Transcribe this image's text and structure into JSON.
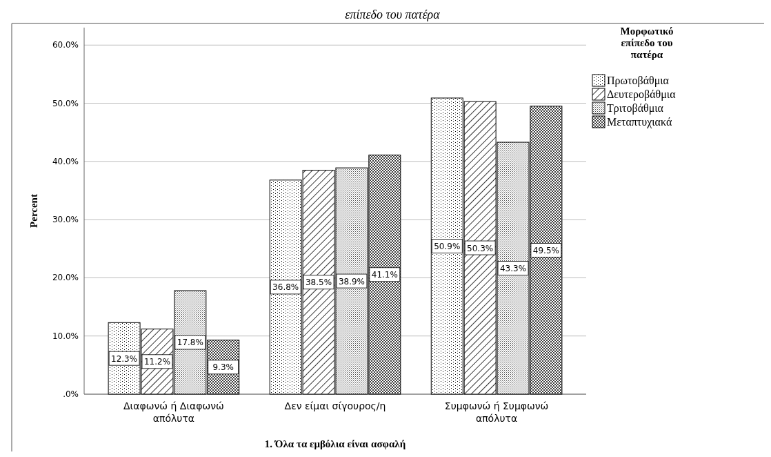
{
  "chart_data": {
    "type": "bar",
    "title": "επίπεδο του πατέρα",
    "xlabel": "1. Όλα τα εμβόλια είναι ασφαλή",
    "ylabel": "Percent",
    "legend_title": "Μορφωτικό επίπεδο του πατέρα",
    "categories": [
      "Διαφωνώ ή Διαφωνώ απόλυτα",
      "Δεν είμαι σίγουρος/η",
      "Συμφωνώ ή Συμφωνώ απόλυτα"
    ],
    "series": [
      {
        "name": "Πρωτοβάθμια",
        "color": "#000000",
        "values": [
          12.3,
          36.8,
          50.9
        ]
      },
      {
        "name": "Δευτεροβάθμια",
        "color": "#000000",
        "values": [
          11.2,
          38.5,
          50.3
        ]
      },
      {
        "name": "Τριτοβάθμια",
        "color": "#000000",
        "values": [
          17.8,
          38.9,
          43.3
        ]
      },
      {
        "name": "Μεταπτυχιακά",
        "color": "#000000",
        "values": [
          9.3,
          41.1,
          49.5
        ]
      }
    ],
    "ylim": [
      0,
      63
    ],
    "yticks": [
      {
        "value": 0,
        "label": ".0%"
      },
      {
        "value": 10,
        "label": "10.0%"
      },
      {
        "value": 20,
        "label": "20.0%"
      },
      {
        "value": 30,
        "label": "30.0%"
      },
      {
        "value": 40,
        "label": "40.0%"
      },
      {
        "value": 50,
        "label": "50.0%"
      },
      {
        "value": 60,
        "label": "60.0%"
      }
    ],
    "value_labels": [
      [
        "12.3%",
        "36.8%",
        "50.9%"
      ],
      [
        "11.2%",
        "38.5%",
        "50.3%"
      ],
      [
        "17.8%",
        "38.9%",
        "43.3%"
      ],
      [
        "9.3%",
        "41.1%",
        "49.5%"
      ]
    ],
    "grid": "y",
    "legend": "right"
  }
}
